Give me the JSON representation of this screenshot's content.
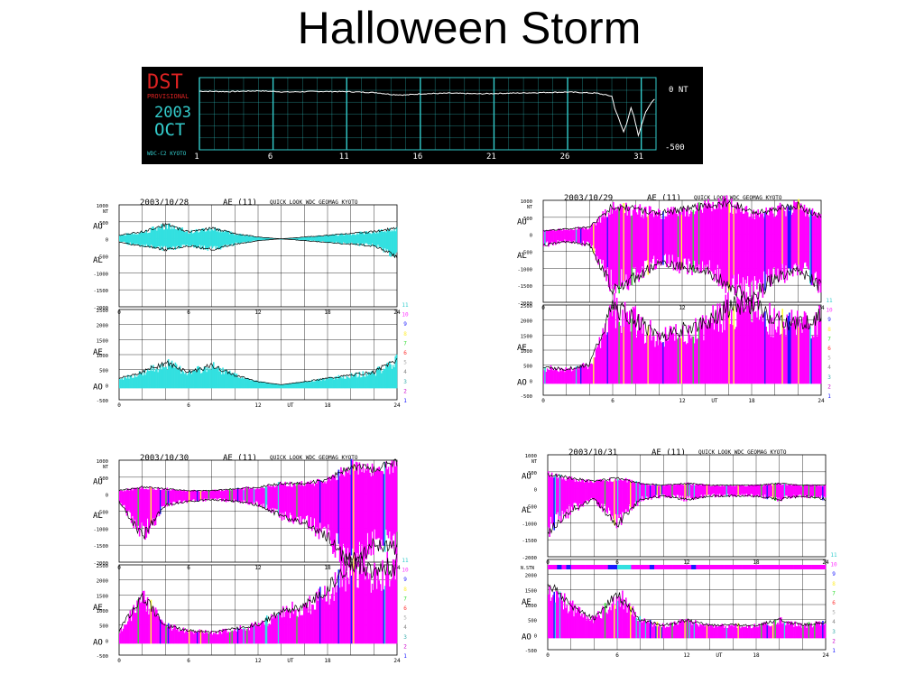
{
  "slide": {
    "title": "Halloween Storm"
  },
  "colors": {
    "cyan": "#33e0e0",
    "magenta": "#ff00ff",
    "blue": "#1a1aff",
    "yellow": "#ffff33",
    "green": "#33dd33",
    "red": "#ff3333",
    "dst_red": "#dd2222",
    "dst_cyan": "#33cccc"
  },
  "chart_data": [
    {
      "type": "line",
      "title": "DST",
      "subtitle": "PROVISIONAL",
      "year": "2003",
      "month": "OCT",
      "credit": "WDC-C2 KYOTO",
      "x_ticks": [
        "1",
        "6",
        "11",
        "16",
        "21",
        "26",
        "31"
      ],
      "y_tick_labels": [
        "0 NT",
        "-500"
      ],
      "ylim": [
        -500,
        0
      ],
      "xlim": [
        1,
        32
      ],
      "grid": true,
      "series": [
        {
          "x": [
            1,
            3,
            5,
            7,
            9,
            11,
            13,
            14,
            15,
            16,
            18,
            20,
            22,
            24,
            26,
            27,
            28,
            29,
            29.2,
            29.5,
            29.8,
            30,
            30.3,
            30.5,
            30.8,
            31,
            31.3,
            31.6,
            32
          ],
          "values": [
            -8,
            -12,
            -5,
            -15,
            -10,
            -12,
            -20,
            -35,
            -40,
            -30,
            -25,
            -30,
            -25,
            -20,
            -15,
            -20,
            -25,
            -50,
            -150,
            -250,
            -350,
            -280,
            -150,
            -220,
            -380,
            -300,
            -180,
            -120,
            -60
          ]
        }
      ]
    },
    {
      "type": "area",
      "date": "2003/10/28",
      "header": "AE (11)",
      "source": "QUICK LOOK  WDC GEOMAG KYOTO",
      "unit": "NT",
      "upper_labels": [
        "AU",
        "AL"
      ],
      "lower_labels": [
        "AE",
        "AO"
      ],
      "upper_ticks": [
        "1000",
        "500",
        "0",
        "-500",
        "-1000",
        "-1500",
        "-2000"
      ],
      "lower_ticks": [
        "2500",
        "2000",
        "1500",
        "1000",
        "500",
        "0",
        "-500"
      ],
      "x_ticks": [
        "0",
        "6",
        "12",
        "18",
        "24"
      ],
      "x_label": "UT",
      "station_scale": [
        "11",
        "10",
        "9",
        "8",
        "7",
        "6",
        "5",
        "4",
        "3",
        "2",
        "1"
      ],
      "dominant_color": "cyan",
      "au_hours": [
        0,
        2,
        4,
        6,
        8,
        10,
        12,
        14,
        16,
        18,
        20,
        22,
        24
      ],
      "au": [
        100,
        200,
        400,
        200,
        300,
        150,
        50,
        0,
        50,
        100,
        150,
        200,
        300
      ],
      "al": [
        -100,
        -200,
        -300,
        -200,
        -300,
        -150,
        -50,
        0,
        -50,
        -100,
        -150,
        -200,
        -500
      ],
      "ae": [
        200,
        400,
        700,
        400,
        600,
        300,
        100,
        0,
        100,
        200,
        300,
        400,
        800
      ]
    },
    {
      "type": "area",
      "date": "2003/10/29",
      "header": "AE (11)",
      "source": "QUICK LOOK  WDC GEOMAG KYOTO",
      "unit": "NT",
      "upper_labels": [
        "AU",
        "AL"
      ],
      "lower_labels": [
        "AE",
        "AO"
      ],
      "upper_ticks": [
        "1000",
        "500",
        "0",
        "-500",
        "-1000",
        "-1500",
        "-2000"
      ],
      "lower_ticks": [
        "2500",
        "2000",
        "1500",
        "1000",
        "500",
        "0",
        "-500"
      ],
      "x_ticks": [
        "0",
        "6",
        "12",
        "18",
        "24"
      ],
      "x_label": "UT",
      "station_scale": [
        "11",
        "10",
        "9",
        "8",
        "7",
        "6",
        "5",
        "4",
        "3",
        "2",
        "1"
      ],
      "dominant_color": "magenta",
      "au_hours": [
        0,
        2,
        4,
        6,
        8,
        10,
        12,
        14,
        16,
        18,
        20,
        22,
        24
      ],
      "au": [
        100,
        150,
        200,
        800,
        700,
        600,
        700,
        800,
        900,
        600,
        700,
        800,
        500
      ],
      "al": [
        -300,
        -200,
        -300,
        -1500,
        -1200,
        -800,
        -900,
        -1000,
        -1400,
        -1800,
        -1200,
        -1000,
        -1500
      ],
      "ae": [
        400,
        350,
        500,
        2300,
        1900,
        1400,
        1600,
        1800,
        2300,
        2400,
        1900,
        1800,
        2000
      ]
    },
    {
      "type": "area",
      "date": "2003/10/30",
      "header": "AE (11)",
      "source": "QUICK LOOK  WDC GEOMAG KYOTO",
      "unit": "NT",
      "upper_labels": [
        "AU",
        "AL"
      ],
      "lower_labels": [
        "AE",
        "AO"
      ],
      "upper_ticks": [
        "1000",
        "500",
        "0",
        "-500",
        "-1000",
        "-1500",
        "-2000"
      ],
      "lower_ticks": [
        "2500",
        "2000",
        "1500",
        "1000",
        "500",
        "0",
        "-500"
      ],
      "x_ticks": [
        "0",
        "6",
        "12",
        "18",
        "24"
      ],
      "x_label": "UT",
      "station_scale": [
        "11",
        "10",
        "9",
        "8",
        "7",
        "6",
        "5",
        "4",
        "3",
        "2",
        "1"
      ],
      "dominant_color": "magenta",
      "au_hours": [
        0,
        2,
        4,
        6,
        8,
        10,
        12,
        14,
        16,
        18,
        20,
        22,
        24
      ],
      "au": [
        100,
        200,
        150,
        100,
        100,
        150,
        200,
        300,
        300,
        400,
        800,
        700,
        900
      ],
      "al": [
        -200,
        -1200,
        -300,
        -200,
        -150,
        -200,
        -300,
        -600,
        -800,
        -1200,
        -2000,
        -1400,
        -1500
      ],
      "ae": [
        300,
        1400,
        450,
        300,
        250,
        350,
        500,
        900,
        1100,
        1600,
        2500,
        2100,
        2400
      ]
    },
    {
      "type": "area",
      "date": "2003/10/31",
      "header": "AE (11)",
      "source": "QUICK LOOK  WDC GEOMAG KYOTO",
      "unit": "NT",
      "upper_labels": [
        "AU",
        "AL"
      ],
      "lower_labels": [
        "AE",
        "AO"
      ],
      "upper_ticks": [
        "1000",
        "500",
        "0",
        "-500",
        "-1000",
        "-1500",
        "-2000"
      ],
      "lower_ticks": [
        "2000",
        "1500",
        "1000",
        "500",
        "0",
        "-500"
      ],
      "x_ticks": [
        "0",
        "6",
        "12",
        "18",
        "24"
      ],
      "x_label": "UT",
      "station_row_label": "N.STN",
      "station_scale": [
        "11",
        "10",
        "9",
        "8",
        "7",
        "6",
        "5",
        "4",
        "3",
        "2",
        "1"
      ],
      "dominant_color": "magenta",
      "au_hours": [
        0,
        2,
        4,
        6,
        8,
        10,
        12,
        14,
        16,
        18,
        20,
        22,
        24
      ],
      "au": [
        400,
        300,
        200,
        300,
        150,
        100,
        150,
        100,
        100,
        100,
        150,
        100,
        100
      ],
      "al": [
        -1200,
        -600,
        -300,
        -1000,
        -300,
        -200,
        -300,
        -200,
        -200,
        -200,
        -300,
        -200,
        -300
      ],
      "ae": [
        1600,
        900,
        500,
        1300,
        450,
        300,
        450,
        300,
        300,
        300,
        450,
        300,
        400
      ]
    }
  ]
}
